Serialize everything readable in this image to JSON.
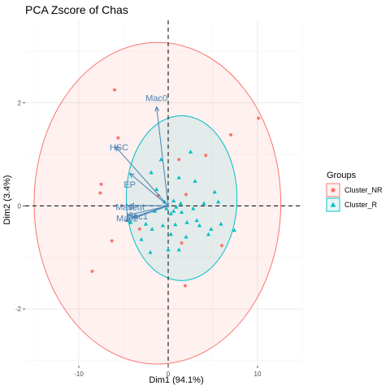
{
  "chart_data": {
    "type": "scatter",
    "title": "PCA Zscore of Chas",
    "xlabel": "Dim1 (94.1%)",
    "ylabel": "Dim2 (3.4%)",
    "xlim": [
      -16,
      15
    ],
    "ylim": [
      -3.1,
      3.6
    ],
    "x_ticks": [
      -10,
      0,
      10
    ],
    "y_ticks": [
      -2,
      0,
      2
    ],
    "x_tick_labels": [
      "-10",
      "0",
      "10"
    ],
    "y_tick_labels": [
      "-2",
      "0",
      "2"
    ],
    "grid": true,
    "reference_lines": {
      "x": 0,
      "y": 0,
      "style": "dashed"
    },
    "legend": {
      "title": "Groups",
      "placement": "right",
      "entries": [
        {
          "label": "Cluster_NR",
          "color": "#F8766D",
          "shape": "circle"
        },
        {
          "label": "Cluster_R",
          "color": "#00BFC4",
          "shape": "triangle"
        }
      ]
    },
    "series": [
      {
        "name": "Cluster_NR",
        "color": "#F8766D",
        "shape": "circle",
        "points": [
          {
            "x": -6.0,
            "y": 2.25
          },
          {
            "x": -5.6,
            "y": 1.32
          },
          {
            "x": 7.0,
            "y": 1.38
          },
          {
            "x": 10.1,
            "y": 1.7
          },
          {
            "x": -7.5,
            "y": 0.42
          },
          {
            "x": -7.6,
            "y": 0.25
          },
          {
            "x": -8.5,
            "y": -1.27
          },
          {
            "x": 4.2,
            "y": 0.98
          },
          {
            "x": 1.2,
            "y": 0.9
          },
          {
            "x": 2.0,
            "y": 0.22
          },
          {
            "x": 1.5,
            "y": -0.72
          },
          {
            "x": -3.2,
            "y": -0.45
          },
          {
            "x": -6.3,
            "y": -0.68
          },
          {
            "x": 1.9,
            "y": -1.55
          },
          {
            "x": -1.1,
            "y": 0.2
          },
          {
            "x": 6.0,
            "y": -0.77
          }
        ]
      },
      {
        "name": "Cluster_R",
        "color": "#00BFC4",
        "shape": "triangle",
        "points": [
          {
            "x": -0.8,
            "y": 0.9
          },
          {
            "x": 1.2,
            "y": 0.55
          },
          {
            "x": 2.5,
            "y": 1.05
          },
          {
            "x": 3.0,
            "y": 0.48
          },
          {
            "x": 5.2,
            "y": 0.27
          },
          {
            "x": 5.6,
            "y": 0.08
          },
          {
            "x": 4.0,
            "y": 0.05
          },
          {
            "x": 2.8,
            "y": -0.05
          },
          {
            "x": 7.4,
            "y": -0.47
          },
          {
            "x": 5.9,
            "y": -0.35
          },
          {
            "x": 4.8,
            "y": -0.45
          },
          {
            "x": 3.5,
            "y": -0.38
          },
          {
            "x": 3.2,
            "y": -0.28
          },
          {
            "x": 2.1,
            "y": -0.32
          },
          {
            "x": 1.5,
            "y": -0.12
          },
          {
            "x": 0.8,
            "y": -0.36
          },
          {
            "x": 0.3,
            "y": -0.55
          },
          {
            "x": -0.6,
            "y": -0.38
          },
          {
            "x": 2.0,
            "y": -0.6
          },
          {
            "x": 4.5,
            "y": -0.55
          },
          {
            "x": -1.8,
            "y": -0.45
          },
          {
            "x": -2.5,
            "y": -0.35
          },
          {
            "x": -3.0,
            "y": -0.65
          },
          {
            "x": -2.0,
            "y": -0.9
          },
          {
            "x": 0.0,
            "y": -0.85
          },
          {
            "x": 1.2,
            "y": -0.85
          },
          {
            "x": -4.2,
            "y": -0.32
          },
          {
            "x": -1.5,
            "y": -0.1
          },
          {
            "x": 0.6,
            "y": 0.1
          },
          {
            "x": -0.2,
            "y": -0.05
          },
          {
            "x": 0.9,
            "y": -0.02
          },
          {
            "x": -1.3,
            "y": 0.32
          },
          {
            "x": -1.9,
            "y": 0.65
          },
          {
            "x": -0.4,
            "y": 0.08
          },
          {
            "x": 0.3,
            "y": -0.15
          },
          {
            "x": 0.6,
            "y": -0.1
          },
          {
            "x": 1.4,
            "y": 0.05
          }
        ]
      }
    ],
    "ellipses": [
      {
        "group": "Cluster_NR",
        "color": "#F8766D",
        "cx": -1.2,
        "cy": 0.05,
        "rx": 13.8,
        "ry": 3.12,
        "fill_opacity": 0.1
      },
      {
        "group": "Cluster_R",
        "color": "#00BFC4",
        "cx": 1.5,
        "cy": 0.15,
        "rx": 6.2,
        "ry": 1.6,
        "fill_opacity": 0.1
      }
    ],
    "variables": [
      {
        "label": "Mac0",
        "x": -1.3,
        "y": 1.92,
        "label_x": -1.3,
        "label_y": 2.03
      },
      {
        "label": "HSC",
        "x": -5.9,
        "y": 1.15,
        "label_x": -5.5,
        "label_y": 1.08
      },
      {
        "label": "EP",
        "x": -4.3,
        "y": 0.63,
        "label_x": -4.3,
        "label_y": 0.35
      },
      {
        "label": "Mast",
        "x": -4.3,
        "y": 0.01,
        "label_x": -4.8,
        "label_y": -0.08
      },
      {
        "label": "Mac2",
        "x": -4.8,
        "y": -0.3,
        "label_x": -4.6,
        "label_y": -0.3
      },
      {
        "label": "Mac1",
        "x": -4.5,
        "y": -0.18,
        "label_x": -3.5,
        "label_y": -0.26
      },
      {
        "label": "Neut",
        "x": -4.0,
        "y": -0.22,
        "label_x": -3.7,
        "label_y": -0.08
      }
    ],
    "variable_color": "#4682B4"
  }
}
